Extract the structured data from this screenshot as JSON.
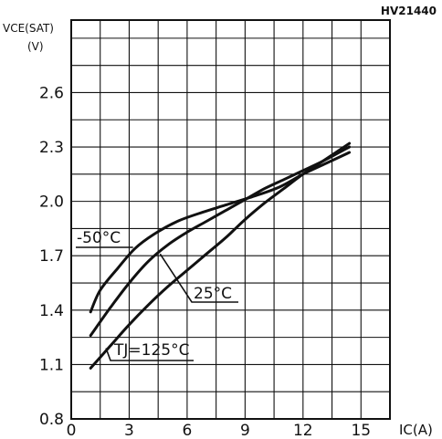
{
  "chart_data": {
    "type": "line",
    "figure_code": "HV21440",
    "ylabel": "VCE(SAT)",
    "yunit": "(V)",
    "xlabel": "IC(A)",
    "xlim": [
      0,
      16.5
    ],
    "ylim": [
      0.8,
      3.0
    ],
    "x_ticks": [
      0,
      3,
      6,
      9,
      12,
      15
    ],
    "y_ticks": [
      0.8,
      1.1,
      1.4,
      1.7,
      2.0,
      2.3,
      2.6
    ],
    "x_tick_labels": [
      "0",
      "3",
      "6",
      "9",
      "12",
      "15"
    ],
    "y_tick_labels": [
      "0.8",
      "1.1",
      "1.4",
      "1.7",
      "2.0",
      "2.3",
      "2.6"
    ],
    "grid": true,
    "series": [
      {
        "name": "-50°C",
        "x": [
          1.0,
          1.5,
          2.4,
          3.3,
          4.3,
          5.5,
          6.8,
          8.0,
          9.5,
          10.8,
          12.0,
          13.2,
          14.4
        ],
        "y": [
          1.39,
          1.51,
          1.63,
          1.74,
          1.82,
          1.89,
          1.94,
          1.98,
          2.03,
          2.08,
          2.15,
          2.21,
          2.27
        ]
      },
      {
        "name": "25°C",
        "x": [
          1.0,
          2.0,
          3.0,
          4.0,
          5.0,
          6.0,
          7.0,
          8.0,
          9.0,
          10.0,
          11.0,
          12.0,
          13.0,
          14.4
        ],
        "y": [
          1.26,
          1.41,
          1.55,
          1.67,
          1.76,
          1.83,
          1.89,
          1.95,
          2.01,
          2.07,
          2.12,
          2.17,
          2.22,
          2.3
        ]
      },
      {
        "name": "TJ=125°C",
        "x": [
          1.0,
          2.0,
          3.0,
          4.0,
          5.0,
          6.0,
          7.0,
          8.0,
          9.0,
          10.0,
          11.0,
          12.0,
          13.0,
          14.4
        ],
        "y": [
          1.08,
          1.2,
          1.32,
          1.43,
          1.53,
          1.62,
          1.71,
          1.8,
          1.9,
          1.99,
          2.07,
          2.15,
          2.22,
          2.32
        ]
      }
    ],
    "annotations": [
      {
        "text": "-50°C",
        "x": 2.6,
        "y": 1.72,
        "target": [
          3.2,
          1.72
        ]
      },
      {
        "text": "25°C",
        "x": 6.9,
        "y": 1.52,
        "target": [
          4.6,
          1.71
        ]
      },
      {
        "text": "TJ=125°C",
        "x": 2.4,
        "y": 1.19,
        "target": [
          1.8,
          1.19
        ]
      }
    ]
  }
}
